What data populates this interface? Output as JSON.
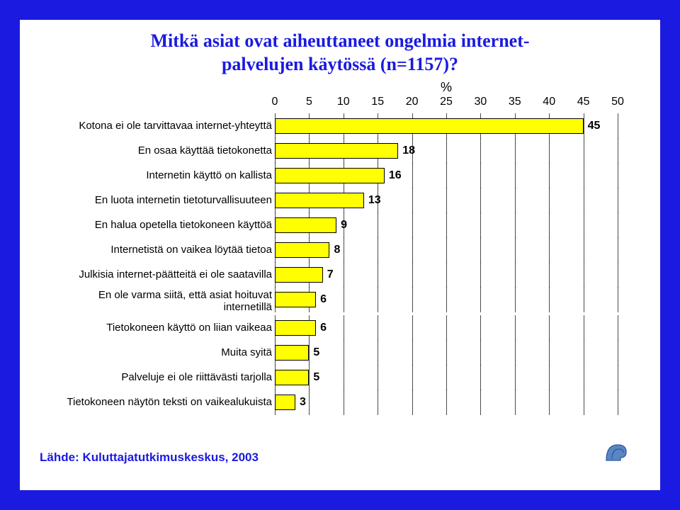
{
  "slide": {
    "border_color": "#1a1ae0",
    "background_color": "#ffffff"
  },
  "title": {
    "lines": [
      "Mitkä asiat ovat aiheuttaneet ongelmia internet-",
      "palvelujen käytössä (n=1157)?"
    ],
    "color": "#1a1ae0",
    "font_size_pt": 20,
    "font_family": "Times New Roman",
    "font_weight": "bold"
  },
  "chart": {
    "type": "bar",
    "orientation": "horizontal",
    "axis_symbol": "%",
    "xlim": [
      0,
      50
    ],
    "xtick_step": 5,
    "xticks": [
      0,
      5,
      10,
      15,
      20,
      25,
      30,
      35,
      40,
      45,
      50
    ],
    "bar_color": "#ffff00",
    "bar_border_color": "#000000",
    "grid_color": "#000000",
    "label_fontsize": 15,
    "value_fontsize": 16,
    "tick_fontsize": 16,
    "categories": [
      "Kotona ei ole tarvittavaa internet-yhteyttä",
      "En osaa käyttää tietokonetta",
      "Internetin käyttö on kallista",
      "En luota internetin tietoturvallisuuteen",
      "En halua opetella tietokoneen käyttöä",
      "Internetistä on vaikea löytää tietoa",
      "Julkisia internet-päätteitä ei ole saatavilla",
      "En ole varma siitä, että asiat hoituvat internetillä",
      "Tietokoneen käyttö on liian vaikeaa",
      "Muita syitä",
      "Palveluje ei ole riittävästi tarjolla",
      "Tietokoneen näytön teksti on vaikealukuista"
    ],
    "values": [
      45,
      18,
      16,
      13,
      9,
      8,
      7,
      6,
      6,
      5,
      5,
      3
    ]
  },
  "footer": {
    "text": "Lähde: Kuluttajatutkimuskeskus, 2003",
    "text_color": "#1a1ae0",
    "logo_colors": {
      "fill": "#5b86c4",
      "outline": "#2a5aa0"
    }
  }
}
